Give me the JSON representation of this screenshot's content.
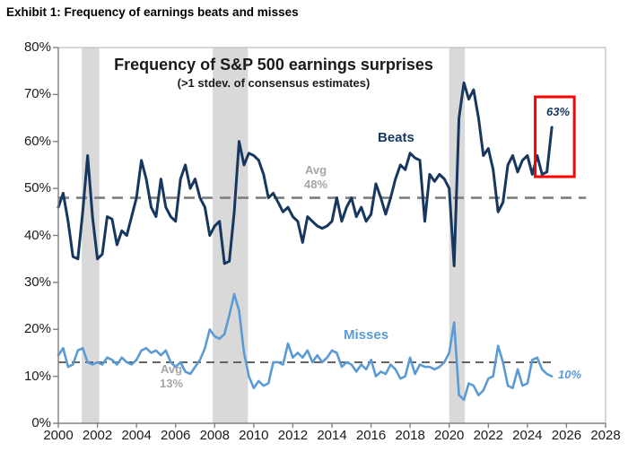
{
  "page_title": "Exhibit 1: Frequency of earnings beats and misses",
  "chart": {
    "title": "Frequency of S&P 500 earnings surprises",
    "subtitle": "(>1 stdev. of consensus estimates)",
    "beats_label": "Beats",
    "misses_label": "Misses",
    "avg_beats": {
      "line1": "Avg",
      "line2": "48%"
    },
    "avg_misses": {
      "line1": "Avg",
      "line2": "13%"
    },
    "beats_end_label": "63%",
    "misses_end_label": "10%"
  },
  "axis": {
    "y_ticks": [
      "80%",
      "70%",
      "60%",
      "50%",
      "40%",
      "30%",
      "20%",
      "10%",
      "0%"
    ],
    "x_ticks": [
      "2000",
      "2002",
      "2004",
      "2006",
      "2008",
      "2010",
      "2012",
      "2014",
      "2016",
      "2018",
      "2020",
      "2022",
      "2024",
      "2026",
      "2028"
    ]
  },
  "colors": {
    "beats": "#17375e",
    "misses": "#5b9bd5",
    "recession_band": "#d9d9d9",
    "beats_avg_line": "#7f7f7f",
    "misses_avg_line": "#595959",
    "highlight_box": "#ff0000",
    "frame": "#bfbfbf",
    "axis": "#808080"
  },
  "chart_data": {
    "type": "line",
    "xlabel": "",
    "ylabel": "",
    "xlim": [
      2000,
      2028
    ],
    "ylim": [
      0,
      80
    ],
    "y_tick_step": 10,
    "x_tick_step": 2,
    "grid": false,
    "x_start": 2000,
    "x_step": 0.25,
    "recession_bands": [
      [
        2001.2,
        2002.1
      ],
      [
        2007.9,
        2009.7
      ],
      [
        2020.0,
        2020.8
      ]
    ],
    "highlight_box": {
      "x0": 2024.4,
      "x1": 2026.4,
      "y0": 52.5,
      "y1": 69.5,
      "label": "63%"
    },
    "series": [
      {
        "name": "Beats",
        "avg": 48,
        "avg_line_end_year": 2027,
        "last_value_label": "63%",
        "values": [
          46,
          49,
          43,
          35.5,
          35,
          45,
          57,
          44,
          35,
          36,
          44,
          43.5,
          38,
          41,
          40,
          44,
          48,
          56,
          52,
          46,
          44,
          52,
          46,
          44,
          43,
          52,
          55,
          50,
          52,
          48,
          46,
          40,
          42,
          43,
          34,
          34.5,
          45,
          60,
          55,
          57.5,
          57,
          56,
          53,
          48,
          49,
          47,
          45,
          46,
          44,
          43,
          38.5,
          44,
          43,
          42,
          41.5,
          42,
          43,
          48,
          43,
          46,
          48,
          44,
          46,
          43,
          44.5,
          51,
          48,
          44.5,
          48,
          52,
          55,
          54,
          57.5,
          56.5,
          56,
          43,
          53,
          51.5,
          53,
          52,
          50,
          33.5,
          65,
          72.5,
          69,
          71,
          65,
          57,
          58.5,
          54,
          45,
          47,
          55,
          57,
          53.5,
          56,
          57,
          53,
          57,
          53,
          53.5,
          63
        ]
      },
      {
        "name": "Misses",
        "avg": 13,
        "avg_line_end_year": 2025.4,
        "last_value_label": "10%",
        "values": [
          14.5,
          16,
          12,
          12.5,
          15.5,
          16,
          13,
          12.5,
          13,
          12.5,
          14,
          13.5,
          12.5,
          14,
          13,
          12.5,
          13.5,
          15.5,
          16,
          15,
          15.5,
          14.5,
          15.5,
          13,
          12,
          13,
          11,
          10.5,
          12,
          13.5,
          16,
          20,
          18.5,
          18,
          19,
          23,
          27.5,
          24,
          15,
          10,
          7.5,
          9,
          8,
          8.5,
          13,
          13,
          12.5,
          17,
          14,
          15,
          14,
          15.5,
          13,
          14.5,
          13,
          14,
          15.5,
          15,
          12,
          13,
          12.5,
          11,
          12.5,
          11.5,
          13.5,
          10,
          11,
          10.5,
          12.5,
          11.5,
          9.5,
          10,
          14,
          10.5,
          12.5,
          12,
          12,
          11.5,
          12,
          13,
          15,
          21.5,
          6,
          5,
          8.5,
          8,
          6,
          7,
          9.5,
          10,
          16.5,
          13,
          8,
          7.5,
          11.5,
          8,
          8.5,
          13.5,
          14,
          11.5,
          10.5,
          10
        ]
      }
    ]
  }
}
